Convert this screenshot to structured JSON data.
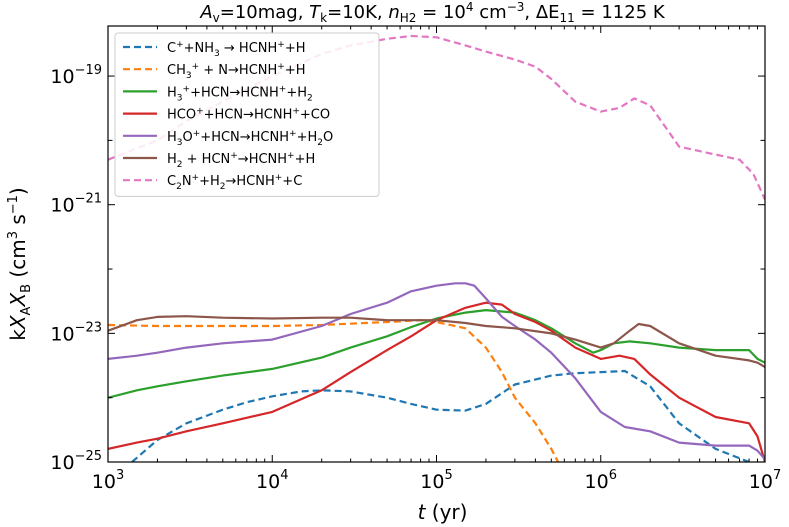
{
  "chart_data": {
    "type": "line",
    "title": "A_v=10mag, T_k=10K, n_H2 = 10^4 cm^-3, ΔE_11 = 1125 K",
    "title_parts": {
      "av": "A",
      "av_sub": "v",
      "av_val": "=10mag, ",
      "tk": "T",
      "tk_sub": "k",
      "tk_val": "=10K, ",
      "n": "n",
      "n_sub": "H2",
      "n_val": " = 10",
      "n_exp": "4",
      "n_unit": " cm",
      "n_unit_exp": "−3",
      "sep": ", ",
      "de": "ΔE",
      "de_sub": "11",
      "de_val": " = 1125 K"
    },
    "xlabel": "t (yr)",
    "xlabel_parts": {
      "var": "t",
      "unit": " (yr)"
    },
    "ylabel": "kX_A X_B (cm^3 s^-1)",
    "ylabel_parts": {
      "k": "k",
      "xa": "X",
      "xa_sub": "A",
      "xb": "X",
      "xb_sub": "B",
      "unit": " (cm",
      "unit_exp": "3",
      "unit_mid": " s",
      "unit_exp2": "−1",
      "unit_end": ")"
    },
    "x_scale": "log",
    "y_scale": "log",
    "xlim": [
      1000,
      10000000
    ],
    "ylim": [
      1e-25,
      6e-19
    ],
    "x_ticks": [
      {
        "base": "10",
        "exp": "3",
        "value": 1000
      },
      {
        "base": "10",
        "exp": "4",
        "value": 10000
      },
      {
        "base": "10",
        "exp": "5",
        "value": 100000
      },
      {
        "base": "10",
        "exp": "6",
        "value": 1000000
      },
      {
        "base": "10",
        "exp": "7",
        "value": 10000000
      }
    ],
    "y_ticks": [
      {
        "base": "10",
        "exp": "−25",
        "value": 1e-25
      },
      {
        "base": "10",
        "exp": "−23",
        "value": 1e-23
      },
      {
        "base": "10",
        "exp": "−21",
        "value": 1e-21
      },
      {
        "base": "10",
        "exp": "−19",
        "value": 1e-19
      }
    ],
    "grid": false,
    "legend_position": "top-left",
    "series": [
      {
        "name": "C⁺+NH₃ → HCNH⁺+H",
        "color": "#1f77b4",
        "dashed": true,
        "x": [
          1400,
          2000,
          3000,
          5000,
          7000,
          10000,
          15000,
          20000,
          30000,
          50000,
          70000,
          100000,
          150000,
          200000,
          300000,
          500000,
          700000,
          1000000,
          1400000,
          2000000,
          3000000,
          5000000,
          8000000
        ],
        "y": [
          1e-25,
          2.2e-25,
          4e-25,
          6.5e-25,
          8.5e-25,
          1.05e-24,
          1.25e-24,
          1.3e-24,
          1.25e-24,
          1e-24,
          8e-25,
          6.5e-25,
          6.3e-25,
          8e-25,
          1.6e-24,
          2.2e-24,
          2.4e-24,
          2.5e-24,
          2.6e-24,
          1.5e-24,
          4e-25,
          1.6e-25,
          1e-25
        ]
      },
      {
        "name": "CH₃⁺ + N→HCNH⁺+H",
        "color": "#ff7f0e",
        "dashed": true,
        "x": [
          1000,
          2000,
          5000,
          10000,
          20000,
          50000,
          80000,
          100000,
          150000,
          200000,
          250000,
          300000,
          400000,
          500000,
          550000
        ],
        "y": [
          1.35e-23,
          1.3e-23,
          1.3e-23,
          1.3e-23,
          1.35e-23,
          1.5e-23,
          1.6e-23,
          1.5e-23,
          1.2e-23,
          6e-24,
          2.5e-24,
          1e-24,
          4e-25,
          1.6e-25,
          1e-25
        ]
      },
      {
        "name": "H₃⁺+HCN→HCNH⁺+H₂",
        "color": "#2ca02c",
        "dashed": false,
        "x": [
          1000,
          1500,
          2000,
          3000,
          5000,
          10000,
          20000,
          30000,
          50000,
          70000,
          100000,
          150000,
          200000,
          300000,
          400000,
          500000,
          700000,
          900000,
          1000000,
          1200000,
          1500000,
          2000000,
          3000000,
          5000000,
          8000000,
          9000000,
          10000000
        ],
        "y": [
          1e-24,
          1.3e-24,
          1.5e-24,
          1.8e-24,
          2.2e-24,
          2.8e-24,
          4.2e-24,
          6e-24,
          9e-24,
          1.25e-23,
          1.7e-23,
          2.1e-23,
          2.3e-23,
          2.1e-23,
          1.6e-23,
          1.2e-23,
          7e-24,
          5e-24,
          5.5e-24,
          7e-24,
          7.5e-24,
          7e-24,
          6e-24,
          5.5e-24,
          5.5e-24,
          4e-24,
          3.5e-24
        ]
      },
      {
        "name": "HCO⁺+HCN→HCNH⁺+CO",
        "color": "#d62728",
        "dashed": false,
        "x": [
          1000,
          1500,
          2000,
          3000,
          5000,
          10000,
          20000,
          30000,
          50000,
          70000,
          100000,
          150000,
          200000,
          250000,
          300000,
          400000,
          500000,
          700000,
          1000000,
          1300000,
          1600000,
          2000000,
          3000000,
          5000000,
          8000000,
          9000000,
          10000000
        ],
        "y": [
          1.6e-25,
          2e-25,
          2.3e-25,
          3e-25,
          4e-25,
          6e-25,
          1.3e-24,
          2.5e-24,
          5.5e-24,
          9e-24,
          1.6e-23,
          2.5e-23,
          3e-23,
          2.8e-23,
          2e-23,
          1.5e-23,
          1.1e-23,
          6e-24,
          4e-24,
          4.5e-24,
          4e-24,
          2.3e-24,
          1e-24,
          5e-25,
          4e-25,
          2.5e-25,
          1e-25
        ]
      },
      {
        "name": "H₃O⁺+HCN→HCNH⁺+H₂O",
        "color": "#9467bd",
        "dashed": false,
        "x": [
          1000,
          1500,
          2000,
          3000,
          5000,
          10000,
          20000,
          30000,
          50000,
          70000,
          100000,
          130000,
          150000,
          170000,
          200000,
          250000,
          300000,
          400000,
          500000,
          700000,
          1000000,
          1400000,
          2000000,
          3000000,
          5000000,
          8000000,
          9000000,
          10000000
        ],
        "y": [
          4e-24,
          4.5e-24,
          5e-24,
          6e-24,
          7e-24,
          8e-24,
          1.3e-23,
          2e-23,
          3e-23,
          4.5e-23,
          5.5e-23,
          6e-23,
          6e-23,
          5.5e-23,
          3.5e-23,
          1.8e-23,
          1.3e-23,
          8e-24,
          5e-24,
          2e-24,
          6e-25,
          3.5e-25,
          3e-25,
          2e-25,
          1.8e-25,
          1.8e-25,
          1.5e-25,
          1.1e-25
        ]
      },
      {
        "name": "H₂ + HCN⁺→HCNH⁺+H",
        "color": "#8c564b",
        "dashed": false,
        "x": [
          1000,
          1500,
          2000,
          3000,
          5000,
          10000,
          20000,
          30000,
          50000,
          70000,
          100000,
          150000,
          200000,
          300000,
          500000,
          700000,
          1000000,
          1200000,
          1500000,
          1700000,
          2000000,
          3000000,
          5000000,
          8000000,
          9000000,
          10000000
        ],
        "y": [
          1.1e-23,
          1.6e-23,
          1.8e-23,
          1.85e-23,
          1.75e-23,
          1.7e-23,
          1.75e-23,
          1.75e-23,
          1.6e-23,
          1.6e-23,
          1.6e-23,
          1.45e-23,
          1.3e-23,
          1.2e-23,
          1e-23,
          8e-24,
          6e-24,
          7e-24,
          1.1e-23,
          1.4e-23,
          1.3e-23,
          7e-24,
          4.5e-24,
          3.8e-24,
          3.5e-24,
          3e-24
        ]
      },
      {
        "name": "C₂N⁺+H₂→HCNH⁺+C",
        "color": "#e377c2",
        "dashed": true,
        "x": [
          1000,
          2000,
          3000,
          5000,
          10000,
          20000,
          30000,
          50000,
          70000,
          100000,
          150000,
          200000,
          300000,
          400000,
          500000,
          700000,
          1000000,
          1300000,
          1600000,
          2000000,
          3000000,
          5000000,
          7000000,
          8500000,
          10000000
        ],
        "y": [
          5e-21,
          1e-20,
          2e-20,
          4e-20,
          1e-19,
          2.2e-19,
          3e-19,
          3.8e-19,
          4.2e-19,
          4e-19,
          3e-19,
          2.4e-19,
          1.8e-19,
          1.4e-19,
          9e-20,
          4e-20,
          2.8e-20,
          3.2e-20,
          4.5e-20,
          3.5e-20,
          8e-21,
          6e-21,
          5e-21,
          3e-21,
          1.2e-21
        ]
      }
    ],
    "legend": [
      {
        "pre": "C",
        "sup1": "+",
        "mid1": "+NH",
        "sub1": "3",
        "post": " → HCNH",
        "sup2": "+",
        "end": "+H"
      },
      {
        "pre": "CH",
        "sub1": "3",
        "sup1": "+",
        "post": " + N→HCNH",
        "sup2": "+",
        "end": "+H"
      },
      {
        "pre": "H",
        "sub1": "3",
        "sup1": "+",
        "post": "+HCN→HCNH",
        "sup2": "+",
        "end": "+H",
        "sub2": "2"
      },
      {
        "pre": "HCO",
        "sup1": "+",
        "post": "+HCN→HCNH",
        "sup2": "+",
        "end": "+CO"
      },
      {
        "pre": "H",
        "sub1": "3",
        "mid1": "O",
        "sup1": "+",
        "post": "+HCN→HCNH",
        "sup2": "+",
        "end": "+H",
        "sub2": "2",
        "end2": "O"
      },
      {
        "pre": "H",
        "sub1": "2",
        "post": " + HCN",
        "sup1": "+",
        "mid1": "→HCNH",
        "sup2": "+",
        "end": "+H"
      },
      {
        "pre": "C",
        "sub1": "2",
        "mid1": "N",
        "sup1": "+",
        "post": "+H",
        "sub2": "2",
        "end": "→HCNH",
        "sup2": "+",
        "end2": "+C"
      }
    ]
  }
}
